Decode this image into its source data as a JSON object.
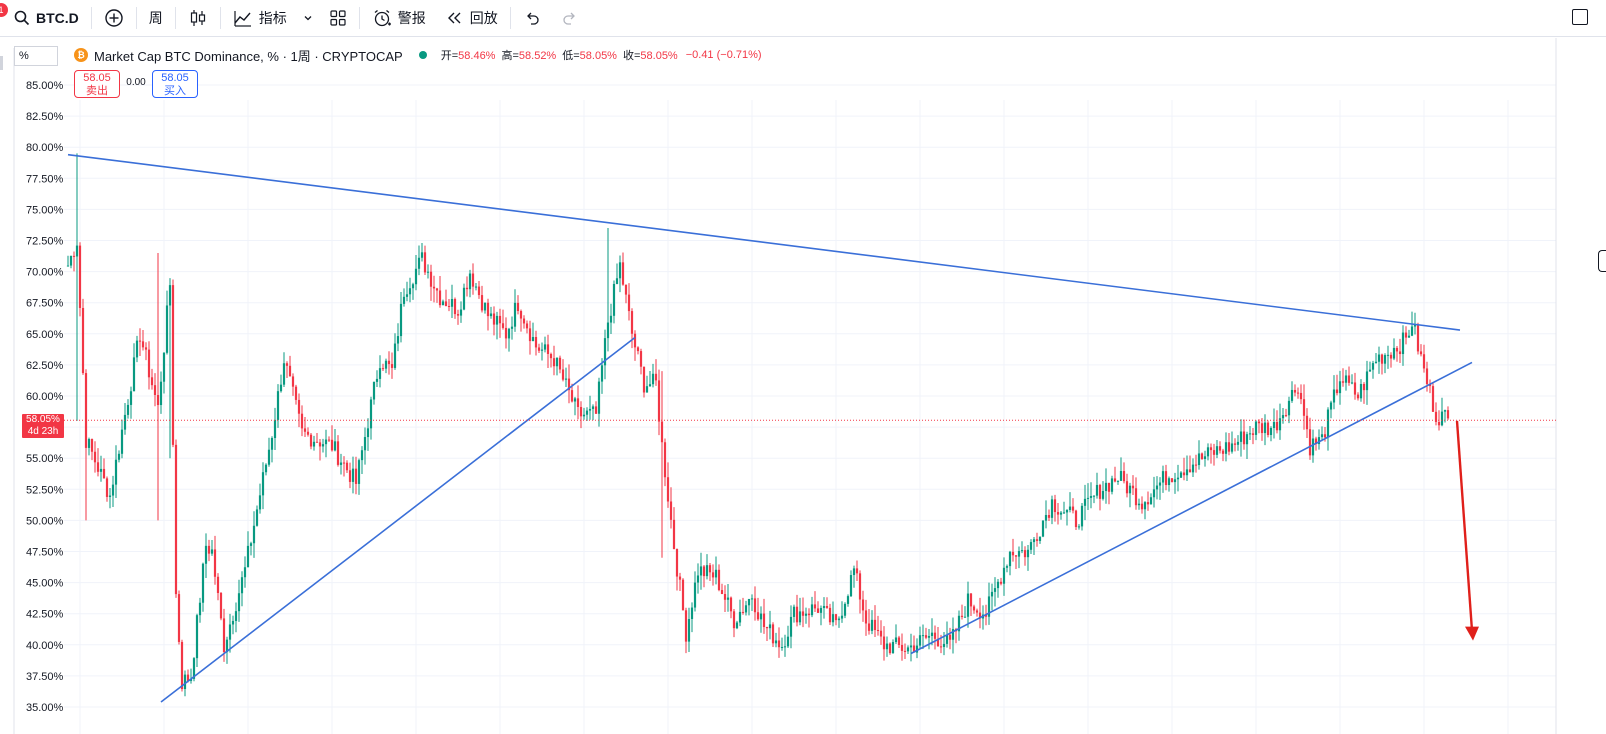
{
  "toolbar": {
    "symbol": "BTC.D",
    "notification_count": "1",
    "interval": "周",
    "indicators_label": "指标",
    "alert_label": "警报",
    "replay_label": "回放"
  },
  "legend": {
    "scale_mode": "%",
    "title": "Market Cap BTC Dominance, %",
    "interval": "1周",
    "source": "CRYPTOCAP",
    "title_full": "Market Cap BTC Dominance, % · 1周 · CRYPTOCAP",
    "open_label": "开=",
    "open_value": "58.46%",
    "high_label": "高=",
    "high_value": "58.52%",
    "low_label": "低=",
    "low_value": "58.05%",
    "close_label": "收=",
    "close_value": "58.05%",
    "change": "−0.41 (−0.71%)"
  },
  "trade": {
    "sell_price": "58.05",
    "sell_label": "卖出",
    "spread": "0.00",
    "buy_price": "58.05",
    "buy_label": "买入"
  },
  "price_tag": {
    "price": "58.05%",
    "countdown": "4d 23h"
  },
  "colors": {
    "up": "#089981",
    "down": "#f23645",
    "trendline": "#3a6fd8",
    "arrow": "#e0201b"
  },
  "chart_data": {
    "type": "candlestick",
    "y_unit": "%",
    "ylim": [
      35,
      86.5
    ],
    "y_ticks": [
      "85.00%",
      "82.50%",
      "80.00%",
      "77.50%",
      "75.00%",
      "72.50%",
      "70.00%",
      "67.50%",
      "65.00%",
      "62.50%",
      "60.00%",
      "57.50%",
      "55.00%",
      "52.50%",
      "50.00%",
      "47.50%",
      "45.00%",
      "42.50%",
      "40.00%",
      "37.50%",
      "35.00%"
    ],
    "last_price": 58.05,
    "path_anchors": [
      [
        0,
        70.5
      ],
      [
        3,
        72.5
      ],
      [
        6,
        56.5
      ],
      [
        14,
        52
      ],
      [
        24,
        65
      ],
      [
        30,
        59
      ],
      [
        34,
        69
      ],
      [
        36,
        44
      ],
      [
        38,
        37
      ],
      [
        41,
        37.5
      ],
      [
        46,
        48
      ],
      [
        48,
        47.5
      ],
      [
        52,
        40
      ],
      [
        59,
        46
      ],
      [
        68,
        57
      ],
      [
        72,
        63
      ],
      [
        78,
        57
      ],
      [
        88,
        56
      ],
      [
        96,
        53
      ],
      [
        104,
        63
      ],
      [
        108,
        62
      ],
      [
        112,
        68.5
      ],
      [
        118,
        71
      ],
      [
        124,
        68
      ],
      [
        130,
        67
      ],
      [
        134,
        70
      ],
      [
        140,
        66.5
      ],
      [
        146,
        65
      ],
      [
        150,
        67.5
      ],
      [
        156,
        64
      ],
      [
        162,
        63
      ],
      [
        170,
        58.5
      ],
      [
        176,
        58.5
      ],
      [
        180,
        66
      ],
      [
        184,
        70.5
      ],
      [
        188,
        65
      ],
      [
        192,
        61
      ],
      [
        196,
        61
      ],
      [
        198,
        56
      ],
      [
        202,
        48
      ],
      [
        206,
        41
      ],
      [
        210,
        46
      ],
      [
        216,
        45.5
      ],
      [
        222,
        42
      ],
      [
        228,
        44
      ],
      [
        232,
        41.5
      ],
      [
        238,
        40
      ],
      [
        242,
        42.5
      ],
      [
        250,
        43
      ],
      [
        256,
        41.5
      ],
      [
        262,
        46
      ],
      [
        266,
        42
      ],
      [
        272,
        40
      ],
      [
        280,
        39.7
      ],
      [
        288,
        40.8
      ],
      [
        294,
        40
      ],
      [
        300,
        43.5
      ],
      [
        306,
        42.5
      ],
      [
        314,
        47.5
      ],
      [
        320,
        47.5
      ],
      [
        328,
        51.5
      ],
      [
        336,
        50
      ],
      [
        344,
        52.5
      ],
      [
        350,
        53.5
      ],
      [
        358,
        51.5
      ],
      [
        366,
        53.5
      ],
      [
        374,
        54.5
      ],
      [
        382,
        55.5
      ],
      [
        388,
        56
      ],
      [
        396,
        57.5
      ],
      [
        402,
        57.5
      ],
      [
        410,
        61
      ],
      [
        414,
        56
      ],
      [
        418,
        56.5
      ],
      [
        424,
        61.5
      ],
      [
        430,
        60
      ],
      [
        436,
        63
      ],
      [
        440,
        63.5
      ],
      [
        446,
        64.5
      ],
      [
        448,
        66
      ],
      [
        452,
        62
      ],
      [
        456,
        58.5
      ],
      [
        460,
        58.2
      ]
    ],
    "trendlines": [
      {
        "name": "descending-resistance",
        "from": [
          0,
          79.4
        ],
        "to": [
          464,
          65.3
        ]
      },
      {
        "name": "support-1",
        "from": [
          31,
          35.4
        ],
        "to": [
          189,
          64.7
        ]
      },
      {
        "name": "support-2",
        "from": [
          281,
          39.3
        ],
        "to": [
          468,
          62.7
        ]
      }
    ],
    "annotation_arrow": {
      "from": [
        463,
        58
      ],
      "to": [
        468,
        40.5
      ]
    }
  }
}
